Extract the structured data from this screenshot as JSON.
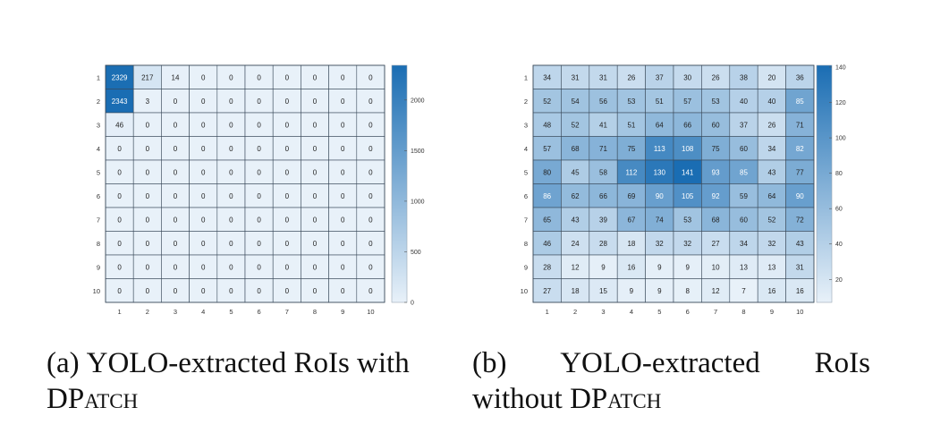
{
  "chart_data": [
    {
      "type": "heatmap",
      "x_tick_labels": [
        "1",
        "2",
        "3",
        "4",
        "5",
        "6",
        "7",
        "8",
        "9",
        "10"
      ],
      "y_tick_labels": [
        "1",
        "2",
        "3",
        "4",
        "5",
        "6",
        "7",
        "8",
        "9",
        "10"
      ],
      "values": [
        [
          2329,
          217,
          14,
          0,
          0,
          0,
          0,
          0,
          0,
          0
        ],
        [
          2343,
          3,
          0,
          0,
          0,
          0,
          0,
          0,
          0,
          0
        ],
        [
          46,
          0,
          0,
          0,
          0,
          0,
          0,
          0,
          0,
          0
        ],
        [
          0,
          0,
          0,
          0,
          0,
          0,
          0,
          0,
          0,
          0
        ],
        [
          0,
          0,
          0,
          0,
          0,
          0,
          0,
          0,
          0,
          0
        ],
        [
          0,
          0,
          0,
          0,
          0,
          0,
          0,
          0,
          0,
          0
        ],
        [
          0,
          0,
          0,
          0,
          0,
          0,
          0,
          0,
          0,
          0
        ],
        [
          0,
          0,
          0,
          0,
          0,
          0,
          0,
          0,
          0,
          0
        ],
        [
          0,
          0,
          0,
          0,
          0,
          0,
          0,
          0,
          0,
          0
        ],
        [
          0,
          0,
          0,
          0,
          0,
          0,
          0,
          0,
          0,
          0
        ]
      ],
      "colorbar": {
        "min": 0,
        "max": 2343,
        "ticks": [
          0,
          500,
          1000,
          1500,
          2000
        ]
      },
      "colormap": {
        "low": "#e8f1f9",
        "high": "#1a6db3"
      },
      "grid": true,
      "caption_label": "(a)",
      "caption_line1": "YOLO-extracted RoIs with",
      "caption_line2_prefix": "DP",
      "caption_line2_sc": "atch",
      "caption_line2_suffix": ""
    },
    {
      "type": "heatmap",
      "x_tick_labels": [
        "1",
        "2",
        "3",
        "4",
        "5",
        "6",
        "7",
        "8",
        "9",
        "10"
      ],
      "y_tick_labels": [
        "1",
        "2",
        "3",
        "4",
        "5",
        "6",
        "7",
        "8",
        "9",
        "10"
      ],
      "values": [
        [
          34,
          31,
          31,
          26,
          37,
          30,
          26,
          38,
          20,
          36
        ],
        [
          52,
          54,
          56,
          53,
          51,
          57,
          53,
          40,
          40,
          85
        ],
        [
          48,
          52,
          41,
          51,
          64,
          66,
          60,
          37,
          26,
          71
        ],
        [
          57,
          68,
          71,
          75,
          113,
          108,
          75,
          60,
          34,
          82
        ],
        [
          80,
          45,
          58,
          112,
          130,
          141,
          93,
          85,
          43,
          77
        ],
        [
          86,
          62,
          66,
          69,
          90,
          105,
          92,
          59,
          64,
          90
        ],
        [
          65,
          43,
          39,
          67,
          74,
          53,
          68,
          60,
          52,
          72
        ],
        [
          46,
          24,
          28,
          18,
          32,
          32,
          27,
          34,
          32,
          43
        ],
        [
          28,
          12,
          9,
          16,
          9,
          9,
          10,
          13,
          13,
          31
        ],
        [
          27,
          18,
          15,
          9,
          9,
          8,
          12,
          7,
          16,
          16
        ]
      ],
      "colorbar": {
        "min": 7,
        "max": 141,
        "ticks": [
          20,
          40,
          60,
          80,
          100,
          120,
          140
        ]
      },
      "colormap": {
        "low": "#e8f1f9",
        "high": "#1a6db3"
      },
      "grid": true,
      "caption_label": "(b)",
      "caption_line1": "YOLO-extracted RoIs",
      "caption_line2_prefix": "without DP",
      "caption_line2_sc": "atch",
      "caption_line2_suffix": ""
    }
  ]
}
